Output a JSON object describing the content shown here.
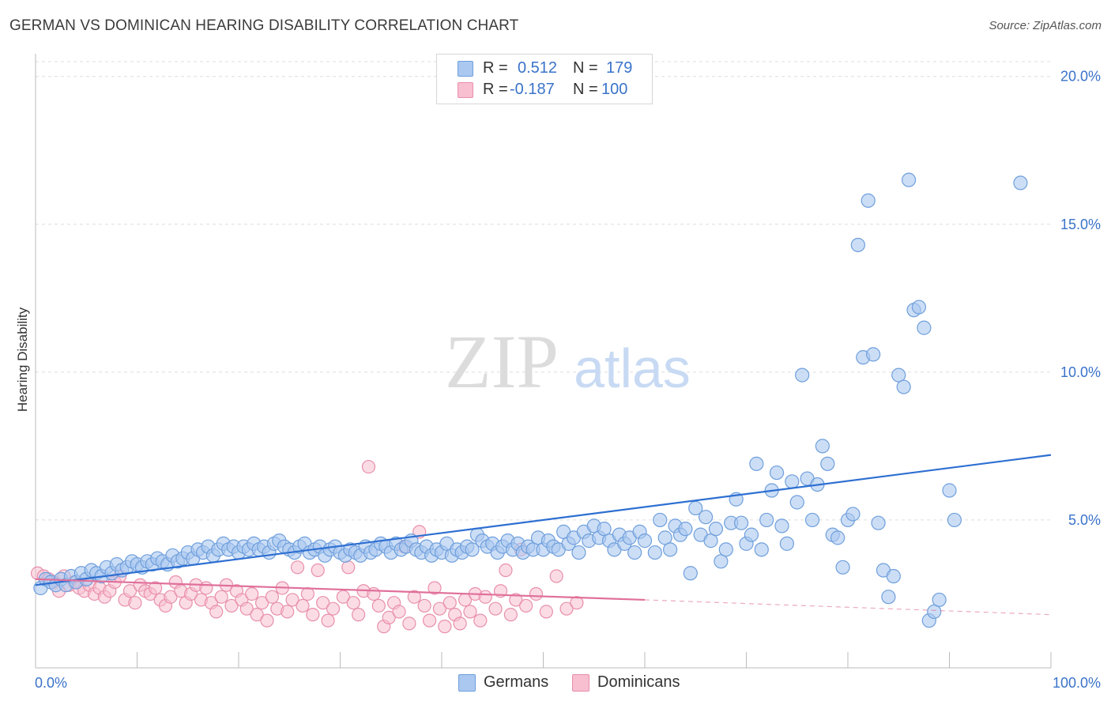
{
  "title": "GERMAN VS DOMINICAN HEARING DISABILITY CORRELATION CHART",
  "source": "Source: ZipAtlas.com",
  "watermark": {
    "zip": "ZIP",
    "atlas": "atlas"
  },
  "legend": {
    "rows": [
      {
        "r_label": "R =",
        "r_value": "0.512",
        "n_label": "N =",
        "n_value": "179",
        "swatch_fill": "#aac8f0",
        "swatch_stroke": "#6f9fdc"
      },
      {
        "r_label": "R =",
        "r_value": "-0.187",
        "n_label": "N =",
        "n_value": "100",
        "swatch_fill": "#f7bfd0",
        "swatch_stroke": "#e88fab"
      }
    ]
  },
  "bottom_legend": [
    {
      "label": "Germans",
      "fill": "#aac8f0",
      "stroke": "#6f9fdc"
    },
    {
      "label": "Dominicans",
      "fill": "#f7bfd0",
      "stroke": "#e88fab"
    }
  ],
  "chart_data": {
    "type": "scatter",
    "title": "GERMAN VS DOMINICAN HEARING DISABILITY CORRELATION CHART",
    "xlabel": "",
    "ylabel": "Hearing Disability",
    "xlim": [
      0,
      100
    ],
    "ylim": [
      0,
      20.5
    ],
    "x_tick_labels": [
      "0.0%",
      "100.0%"
    ],
    "y_ticks": [
      5,
      10,
      15,
      20
    ],
    "y_tick_labels": [
      "5.0%",
      "10.0%",
      "15.0%",
      "20.0%"
    ],
    "grid": true,
    "legend_position": "top-center",
    "colors": {
      "germans_fill": "#aac8f0",
      "germans_stroke": "#6f9fdc",
      "germans_line": "#2e6fd1",
      "dominicans_fill": "#f7bfd0",
      "dominicans_stroke": "#e88fab",
      "dominicans_line": "#e0709a",
      "axis_text": "#3a73c9"
    },
    "series": [
      {
        "name": "Germans",
        "trend": {
          "x0": 0,
          "y0": 2.8,
          "x1": 100,
          "y1": 7.2
        },
        "points": [
          [
            0.5,
            2.7
          ],
          [
            1.0,
            3.0
          ],
          [
            1.5,
            2.9
          ],
          [
            2.0,
            2.8
          ],
          [
            2.5,
            3.0
          ],
          [
            3.0,
            2.8
          ],
          [
            3.5,
            3.1
          ],
          [
            4.0,
            2.9
          ],
          [
            4.5,
            3.2
          ],
          [
            5.0,
            3.0
          ],
          [
            5.5,
            3.3
          ],
          [
            6.0,
            3.2
          ],
          [
            6.5,
            3.1
          ],
          [
            7.0,
            3.4
          ],
          [
            7.5,
            3.2
          ],
          [
            8.0,
            3.5
          ],
          [
            8.5,
            3.3
          ],
          [
            9.0,
            3.4
          ],
          [
            9.5,
            3.6
          ],
          [
            10.0,
            3.5
          ],
          [
            10.5,
            3.4
          ],
          [
            11.0,
            3.6
          ],
          [
            11.5,
            3.5
          ],
          [
            12.0,
            3.7
          ],
          [
            12.5,
            3.6
          ],
          [
            13.0,
            3.5
          ],
          [
            13.5,
            3.8
          ],
          [
            14.0,
            3.6
          ],
          [
            14.5,
            3.7
          ],
          [
            15.0,
            3.9
          ],
          [
            15.5,
            3.7
          ],
          [
            16.0,
            4.0
          ],
          [
            16.5,
            3.9
          ],
          [
            17.0,
            4.1
          ],
          [
            17.5,
            3.8
          ],
          [
            18.0,
            4.0
          ],
          [
            18.5,
            4.2
          ],
          [
            19.0,
            4.0
          ],
          [
            19.5,
            4.1
          ],
          [
            20.0,
            3.9
          ],
          [
            20.5,
            4.1
          ],
          [
            21.0,
            4.0
          ],
          [
            21.5,
            4.2
          ],
          [
            22.0,
            4.0
          ],
          [
            22.5,
            4.1
          ],
          [
            23.0,
            3.9
          ],
          [
            23.5,
            4.2
          ],
          [
            24.0,
            4.3
          ],
          [
            24.5,
            4.1
          ],
          [
            25.0,
            4.0
          ],
          [
            25.5,
            3.9
          ],
          [
            26.0,
            4.1
          ],
          [
            26.5,
            4.2
          ],
          [
            27.0,
            3.9
          ],
          [
            27.5,
            4.0
          ],
          [
            28.0,
            4.1
          ],
          [
            28.5,
            3.8
          ],
          [
            29.0,
            4.0
          ],
          [
            29.5,
            4.1
          ],
          [
            30.0,
            3.9
          ],
          [
            30.5,
            3.8
          ],
          [
            31.0,
            4.0
          ],
          [
            31.5,
            3.9
          ],
          [
            32.0,
            3.8
          ],
          [
            32.5,
            4.1
          ],
          [
            33.0,
            3.9
          ],
          [
            33.5,
            4.0
          ],
          [
            34.0,
            4.2
          ],
          [
            34.5,
            4.1
          ],
          [
            35.0,
            3.9
          ],
          [
            35.5,
            4.2
          ],
          [
            36.0,
            4.0
          ],
          [
            36.5,
            4.1
          ],
          [
            37.0,
            4.3
          ],
          [
            37.5,
            4.0
          ],
          [
            38.0,
            3.9
          ],
          [
            38.5,
            4.1
          ],
          [
            39.0,
            3.8
          ],
          [
            39.5,
            4.0
          ],
          [
            40.0,
            3.9
          ],
          [
            40.5,
            4.2
          ],
          [
            41.0,
            3.8
          ],
          [
            41.5,
            4.0
          ],
          [
            42.0,
            3.9
          ],
          [
            42.5,
            4.1
          ],
          [
            43.0,
            4.0
          ],
          [
            43.5,
            4.5
          ],
          [
            44.0,
            4.3
          ],
          [
            44.5,
            4.1
          ],
          [
            45.0,
            4.2
          ],
          [
            45.5,
            3.9
          ],
          [
            46.0,
            4.1
          ],
          [
            46.5,
            4.3
          ],
          [
            47.0,
            4.0
          ],
          [
            47.5,
            4.2
          ],
          [
            48.0,
            3.9
          ],
          [
            48.5,
            4.1
          ],
          [
            49.0,
            4.0
          ],
          [
            49.5,
            4.4
          ],
          [
            50.0,
            4.0
          ],
          [
            50.5,
            4.3
          ],
          [
            51.0,
            4.1
          ],
          [
            51.5,
            4.0
          ],
          [
            52.0,
            4.6
          ],
          [
            52.5,
            4.2
          ],
          [
            53.0,
            4.4
          ],
          [
            53.5,
            3.9
          ],
          [
            54.0,
            4.6
          ],
          [
            54.5,
            4.3
          ],
          [
            55.0,
            4.8
          ],
          [
            55.5,
            4.4
          ],
          [
            56.0,
            4.7
          ],
          [
            56.5,
            4.3
          ],
          [
            57.0,
            4.0
          ],
          [
            57.5,
            4.5
          ],
          [
            58.0,
            4.2
          ],
          [
            58.5,
            4.4
          ],
          [
            59.0,
            3.9
          ],
          [
            59.5,
            4.6
          ],
          [
            60.0,
            4.3
          ],
          [
            61.0,
            3.9
          ],
          [
            61.5,
            5.0
          ],
          [
            62.0,
            4.4
          ],
          [
            62.5,
            4.0
          ],
          [
            63.0,
            4.8
          ],
          [
            63.5,
            4.5
          ],
          [
            64.0,
            4.7
          ],
          [
            64.5,
            3.2
          ],
          [
            65.0,
            5.4
          ],
          [
            65.5,
            4.5
          ],
          [
            66.0,
            5.1
          ],
          [
            66.5,
            4.3
          ],
          [
            67.0,
            4.7
          ],
          [
            67.5,
            3.6
          ],
          [
            68.0,
            4.0
          ],
          [
            68.5,
            4.9
          ],
          [
            69.0,
            5.7
          ],
          [
            69.5,
            4.9
          ],
          [
            70.0,
            4.2
          ],
          [
            70.5,
            4.5
          ],
          [
            71.0,
            6.9
          ],
          [
            71.5,
            4.0
          ],
          [
            72.0,
            5.0
          ],
          [
            72.5,
            6.0
          ],
          [
            73.0,
            6.6
          ],
          [
            73.5,
            4.8
          ],
          [
            74.0,
            4.2
          ],
          [
            74.5,
            6.3
          ],
          [
            75.0,
            5.6
          ],
          [
            75.5,
            9.9
          ],
          [
            76.0,
            6.4
          ],
          [
            76.5,
            5.0
          ],
          [
            77.0,
            6.2
          ],
          [
            77.5,
            7.5
          ],
          [
            78.0,
            6.9
          ],
          [
            78.5,
            4.5
          ],
          [
            79.0,
            4.4
          ],
          [
            79.5,
            3.4
          ],
          [
            80.0,
            5.0
          ],
          [
            80.5,
            5.2
          ],
          [
            81.0,
            14.3
          ],
          [
            81.5,
            10.5
          ],
          [
            82.0,
            15.8
          ],
          [
            82.5,
            10.6
          ],
          [
            83.0,
            4.9
          ],
          [
            83.5,
            3.3
          ],
          [
            84.0,
            2.4
          ],
          [
            84.5,
            3.1
          ],
          [
            85.0,
            9.9
          ],
          [
            85.5,
            9.5
          ],
          [
            86.0,
            16.5
          ],
          [
            86.5,
            12.1
          ],
          [
            87.0,
            12.2
          ],
          [
            87.5,
            11.5
          ],
          [
            88.0,
            1.6
          ],
          [
            88.5,
            1.9
          ],
          [
            89.0,
            2.3
          ],
          [
            90.0,
            6.0
          ],
          [
            90.5,
            5.0
          ],
          [
            97.0,
            16.4
          ]
        ]
      },
      {
        "name": "Dominicans",
        "trend": {
          "x0": 0,
          "y0": 3.0,
          "x1": 60,
          "y1": 2.3,
          "dash_x1": 100,
          "dash_y1": 1.8
        },
        "points": [
          [
            0.2,
            3.2
          ],
          [
            0.8,
            3.1
          ],
          [
            1.3,
            3.0
          ],
          [
            1.8,
            2.9
          ],
          [
            2.3,
            2.6
          ],
          [
            2.8,
            3.1
          ],
          [
            3.3,
            2.8
          ],
          [
            3.8,
            2.9
          ],
          [
            4.3,
            2.7
          ],
          [
            4.8,
            2.6
          ],
          [
            5.3,
            2.8
          ],
          [
            5.8,
            2.5
          ],
          [
            6.3,
            2.7
          ],
          [
            6.8,
            2.4
          ],
          [
            7.3,
            2.6
          ],
          [
            7.8,
            2.9
          ],
          [
            8.3,
            3.1
          ],
          [
            8.8,
            2.3
          ],
          [
            9.3,
            2.6
          ],
          [
            9.8,
            2.2
          ],
          [
            10.3,
            2.8
          ],
          [
            10.8,
            2.6
          ],
          [
            11.3,
            2.5
          ],
          [
            11.8,
            2.7
          ],
          [
            12.3,
            2.3
          ],
          [
            12.8,
            2.1
          ],
          [
            13.3,
            2.4
          ],
          [
            13.8,
            2.9
          ],
          [
            14.3,
            2.6
          ],
          [
            14.8,
            2.2
          ],
          [
            15.3,
            2.5
          ],
          [
            15.8,
            2.8
          ],
          [
            16.3,
            2.3
          ],
          [
            16.8,
            2.7
          ],
          [
            17.3,
            2.2
          ],
          [
            17.8,
            1.9
          ],
          [
            18.3,
            2.4
          ],
          [
            18.8,
            2.8
          ],
          [
            19.3,
            2.1
          ],
          [
            19.8,
            2.6
          ],
          [
            20.3,
            2.3
          ],
          [
            20.8,
            2.0
          ],
          [
            21.3,
            2.5
          ],
          [
            21.8,
            1.8
          ],
          [
            22.3,
            2.2
          ],
          [
            22.8,
            1.6
          ],
          [
            23.3,
            2.4
          ],
          [
            23.8,
            2.0
          ],
          [
            24.3,
            2.7
          ],
          [
            24.8,
            1.9
          ],
          [
            25.3,
            2.3
          ],
          [
            25.8,
            3.4
          ],
          [
            26.3,
            2.1
          ],
          [
            26.8,
            2.5
          ],
          [
            27.3,
            1.8
          ],
          [
            27.8,
            3.3
          ],
          [
            28.3,
            2.2
          ],
          [
            28.8,
            1.6
          ],
          [
            29.3,
            2.0
          ],
          [
            30.3,
            2.4
          ],
          [
            30.8,
            3.4
          ],
          [
            31.3,
            2.2
          ],
          [
            31.8,
            1.8
          ],
          [
            32.3,
            2.6
          ],
          [
            32.8,
            6.8
          ],
          [
            33.3,
            2.5
          ],
          [
            33.8,
            2.1
          ],
          [
            34.3,
            1.4
          ],
          [
            34.8,
            1.7
          ],
          [
            35.3,
            2.2
          ],
          [
            35.8,
            1.9
          ],
          [
            36.3,
            4.1
          ],
          [
            36.8,
            1.5
          ],
          [
            37.3,
            2.4
          ],
          [
            37.8,
            4.6
          ],
          [
            38.3,
            2.1
          ],
          [
            38.8,
            1.6
          ],
          [
            39.3,
            2.7
          ],
          [
            39.8,
            2.0
          ],
          [
            40.3,
            1.4
          ],
          [
            40.8,
            2.2
          ],
          [
            41.3,
            1.8
          ],
          [
            41.8,
            1.5
          ],
          [
            42.3,
            2.3
          ],
          [
            42.8,
            1.9
          ],
          [
            43.3,
            2.5
          ],
          [
            43.8,
            1.6
          ],
          [
            44.3,
            2.4
          ],
          [
            45.3,
            2.0
          ],
          [
            45.8,
            2.6
          ],
          [
            46.3,
            3.3
          ],
          [
            46.8,
            1.8
          ],
          [
            47.3,
            2.3
          ],
          [
            47.8,
            4.0
          ],
          [
            48.3,
            2.1
          ],
          [
            49.3,
            2.5
          ],
          [
            50.3,
            1.9
          ],
          [
            51.3,
            3.1
          ],
          [
            52.3,
            2.0
          ],
          [
            53.3,
            2.2
          ]
        ]
      }
    ]
  }
}
